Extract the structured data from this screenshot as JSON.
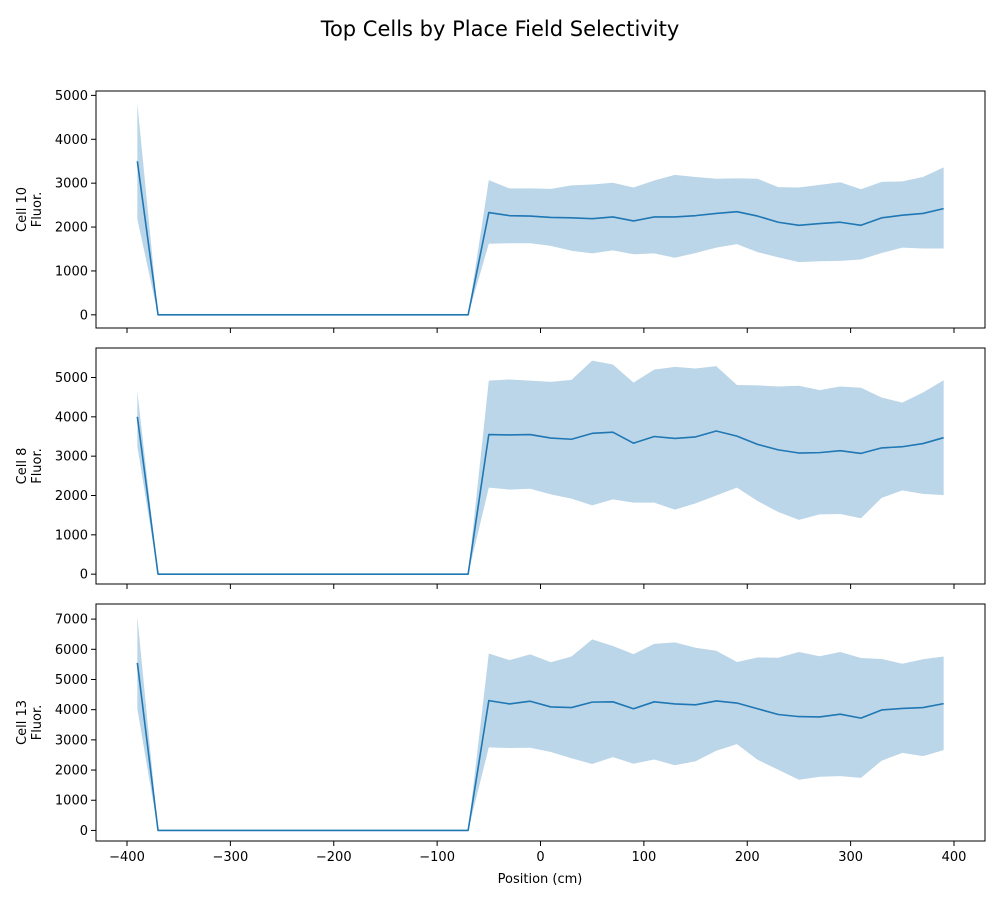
{
  "chart_data": {
    "type": "line",
    "title": "Top Cells by Place Field Selectivity",
    "xlabel": "Position (cm)",
    "xlim": [
      -430,
      430
    ],
    "xticks": [
      -400,
      -300,
      -200,
      -100,
      0,
      100,
      200,
      300,
      400
    ],
    "xticklabels": [
      "−400",
      "−300",
      "−200",
      "−100",
      "0",
      "100",
      "200",
      "300",
      "400"
    ],
    "x": [
      -390,
      -370,
      -350,
      -330,
      -310,
      -290,
      -270,
      -250,
      -230,
      -210,
      -190,
      -170,
      -150,
      -130,
      -110,
      -90,
      -70,
      -50,
      -30,
      -10,
      10,
      30,
      50,
      70,
      90,
      110,
      130,
      150,
      170,
      190,
      210,
      230,
      250,
      270,
      290,
      310,
      330,
      350,
      370,
      390
    ],
    "line_color": "#1f77b4",
    "band_color": "#1f77b4",
    "band_opacity": 0.3,
    "panels": [
      {
        "ylabel": "Cell 10\nFluor.",
        "ylim": [
          -300,
          5100
        ],
        "yticks": [
          0,
          1000,
          2000,
          3000,
          4000,
          5000
        ],
        "mean": [
          3500,
          0,
          0,
          0,
          0,
          0,
          0,
          0,
          0,
          0,
          0,
          0,
          0,
          0,
          0,
          0,
          0,
          2330,
          2260,
          2250,
          2220,
          2210,
          2190,
          2230,
          2140,
          2230,
          2230,
          2260,
          2310,
          2350,
          2250,
          2110,
          2040,
          2080,
          2110,
          2040,
          2210,
          2270,
          2310,
          2420
        ],
        "lower": [
          2180,
          0,
          0,
          0,
          0,
          0,
          0,
          0,
          0,
          0,
          0,
          0,
          0,
          0,
          0,
          0,
          0,
          1620,
          1630,
          1630,
          1570,
          1460,
          1400,
          1470,
          1380,
          1400,
          1300,
          1410,
          1530,
          1610,
          1430,
          1310,
          1200,
          1220,
          1230,
          1260,
          1410,
          1530,
          1510,
          1510
        ],
        "upper": [
          4820,
          0,
          0,
          0,
          0,
          0,
          0,
          0,
          0,
          0,
          0,
          0,
          0,
          0,
          0,
          0,
          0,
          3070,
          2880,
          2880,
          2870,
          2950,
          2970,
          3010,
          2900,
          3060,
          3190,
          3140,
          3100,
          3110,
          3100,
          2910,
          2900,
          2960,
          3020,
          2860,
          3030,
          3040,
          3140,
          3360
        ]
      },
      {
        "ylabel": "Cell 8\nFluor.",
        "ylim": [
          -250,
          5750
        ],
        "yticks": [
          0,
          1000,
          2000,
          3000,
          4000,
          5000
        ],
        "mean": [
          4000,
          0,
          0,
          0,
          0,
          0,
          0,
          0,
          0,
          0,
          0,
          0,
          0,
          0,
          0,
          0,
          0,
          3550,
          3540,
          3550,
          3460,
          3430,
          3580,
          3610,
          3330,
          3500,
          3450,
          3490,
          3640,
          3510,
          3300,
          3160,
          3080,
          3090,
          3140,
          3070,
          3210,
          3240,
          3320,
          3470
        ],
        "lower": [
          3250,
          0,
          0,
          0,
          0,
          0,
          0,
          0,
          0,
          0,
          0,
          0,
          0,
          0,
          0,
          0,
          0,
          2200,
          2150,
          2170,
          2030,
          1920,
          1750,
          1900,
          1820,
          1820,
          1640,
          1800,
          2000,
          2200,
          1860,
          1580,
          1380,
          1520,
          1530,
          1420,
          1940,
          2130,
          2040,
          2010
        ],
        "upper": [
          4650,
          0,
          0,
          0,
          0,
          0,
          0,
          0,
          0,
          0,
          0,
          0,
          0,
          0,
          0,
          0,
          0,
          4920,
          4950,
          4920,
          4890,
          4940,
          5430,
          5330,
          4870,
          5200,
          5270,
          5230,
          5290,
          4810,
          4800,
          4770,
          4790,
          4680,
          4770,
          4740,
          4490,
          4360,
          4620,
          4930
        ]
      },
      {
        "ylabel": "Cell 13\nFluor.",
        "ylim": [
          -350,
          7500
        ],
        "yticks": [
          0,
          1000,
          2000,
          3000,
          4000,
          5000,
          6000,
          7000
        ],
        "mean": [
          5550,
          0,
          0,
          0,
          0,
          0,
          0,
          0,
          0,
          0,
          0,
          0,
          0,
          0,
          0,
          0,
          0,
          4300,
          4190,
          4280,
          4090,
          4070,
          4250,
          4260,
          4030,
          4260,
          4190,
          4160,
          4290,
          4220,
          4030,
          3840,
          3770,
          3760,
          3850,
          3720,
          3990,
          4040,
          4070,
          4200
        ],
        "lower": [
          4020,
          0,
          0,
          0,
          0,
          0,
          0,
          0,
          0,
          0,
          0,
          0,
          0,
          0,
          0,
          0,
          0,
          2750,
          2730,
          2740,
          2600,
          2390,
          2200,
          2430,
          2210,
          2350,
          2160,
          2290,
          2640,
          2860,
          2340,
          2010,
          1680,
          1780,
          1800,
          1740,
          2310,
          2570,
          2460,
          2660
        ],
        "upper": [
          7080,
          0,
          0,
          0,
          0,
          0,
          0,
          0,
          0,
          0,
          0,
          0,
          0,
          0,
          0,
          0,
          0,
          5860,
          5640,
          5830,
          5570,
          5760,
          6330,
          6110,
          5840,
          6180,
          6230,
          6050,
          5950,
          5580,
          5730,
          5720,
          5910,
          5770,
          5910,
          5710,
          5680,
          5520,
          5670,
          5760
        ]
      }
    ]
  }
}
